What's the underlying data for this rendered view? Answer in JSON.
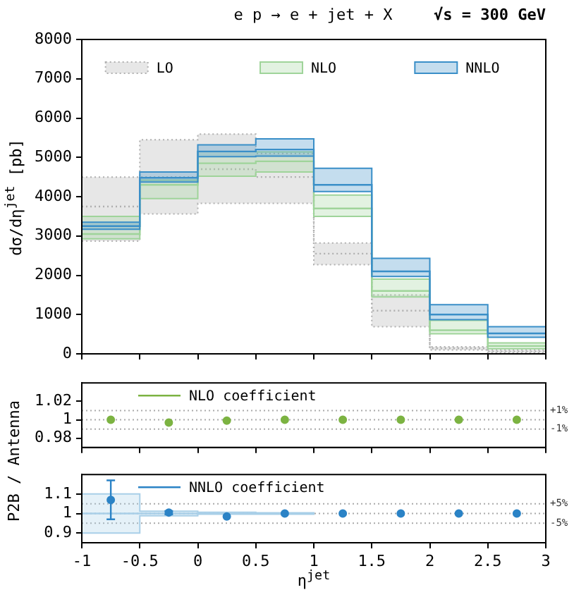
{
  "chart_data": [
    {
      "type": "step",
      "title": "e p → e + jet + X",
      "annotations": [
        "√s = 300 GeV"
      ],
      "ylabel": "dσ/dη$^{jet}$ [pb]",
      "xlim": [
        -1,
        3
      ],
      "xticks": [
        -1,
        -0.5,
        0,
        0.5,
        1,
        1.5,
        2,
        2.5,
        3
      ],
      "ylim": [
        0,
        8000
      ],
      "yticks": [
        0,
        1000,
        2000,
        3000,
        4000,
        5000,
        6000,
        7000,
        8000
      ],
      "tick_labels": "y",
      "legend": "top",
      "grid": false,
      "series": [
        {
          "name": "LO",
          "color": "#b0b0b0",
          "line_style": "dotted",
          "x": [
            -1,
            -0.5,
            0,
            0.5,
            1,
            1.5,
            2,
            2.5,
            3
          ],
          "values": [
            3750,
            4500,
            4700,
            4500,
            2550,
            1100,
            140,
            60,
            60
          ],
          "lower": [
            2870,
            3560,
            3830,
            3830,
            2270,
            690,
            100,
            30,
            30
          ],
          "upper": [
            4500,
            5450,
            5590,
            5100,
            2820,
            1500,
            180,
            100,
            100
          ]
        },
        {
          "name": "NLO",
          "color": "#9fd49a",
          "line_style": "solid",
          "x": [
            -1,
            -0.5,
            0,
            0.5,
            1,
            1.5,
            2,
            2.5,
            3
          ],
          "values": [
            3050,
            4300,
            4850,
            4900,
            3700,
            1600,
            600,
            200,
            200
          ],
          "lower": [
            2930,
            3950,
            4520,
            4630,
            3500,
            1450,
            510,
            130,
            130
          ],
          "upper": [
            3500,
            4420,
            5150,
            5140,
            4040,
            1900,
            850,
            280,
            280
          ]
        },
        {
          "name": "NNLO",
          "color": "#3a8fc8",
          "line_style": "solid",
          "x": [
            -1,
            -0.5,
            0,
            0.5,
            1,
            1.5,
            2,
            2.5,
            3
          ],
          "values": [
            3250,
            4480,
            5150,
            5200,
            4300,
            2100,
            1000,
            520,
            520
          ],
          "lower": [
            3170,
            4370,
            5020,
            5030,
            4130,
            1970,
            870,
            420,
            420
          ],
          "upper": [
            3350,
            4630,
            5320,
            5470,
            4720,
            2430,
            1250,
            690,
            690
          ]
        }
      ]
    },
    {
      "type": "scatter",
      "ylabel": "P2B / Antenna",
      "xlim": [
        -1,
        3
      ],
      "xticks": [
        -1,
        -0.5,
        0,
        0.5,
        1,
        1.5,
        2,
        2.5,
        3
      ],
      "ylim": [
        0.97,
        1.04
      ],
      "yticks": [
        0.98,
        1,
        1.02
      ],
      "tick_labels": "y",
      "legend": "top left",
      "grid": false,
      "ref_lines": [
        {
          "axis": "y",
          "value": 1.01
        },
        {
          "axis": "y",
          "value": 1
        },
        {
          "axis": "y",
          "value": 0.99
        }
      ],
      "annotations": [
        "+1%",
        "-1%"
      ],
      "series": [
        {
          "name": "NLO coefficient",
          "color": "#7cb342",
          "marker": "circle",
          "x": [
            -0.75,
            -0.25,
            0.25,
            0.75,
            1.25,
            1.75,
            2.25,
            2.75
          ],
          "values": [
            1,
            0.997,
            0.999,
            1,
            1,
            1,
            1,
            1
          ]
        }
      ]
    },
    {
      "type": "scatter",
      "xlabel": "η$^{jet}$",
      "xlim": [
        -1,
        3
      ],
      "xticks": [
        -1,
        -0.5,
        0,
        0.5,
        1,
        1.5,
        2,
        2.5,
        3
      ],
      "ylim": [
        0.85,
        1.2
      ],
      "yticks": [
        0.9,
        1,
        1.1
      ],
      "legend": "top left",
      "grid": false,
      "ref_lines": [
        {
          "axis": "y",
          "value": 1.05
        },
        {
          "axis": "y",
          "value": 1
        },
        {
          "axis": "y",
          "value": 0.95
        }
      ],
      "annotations": [
        "+5%",
        "-5%"
      ],
      "series": [
        {
          "type": "step",
          "color": "#a9cfe8",
          "x": [
            -1,
            -0.5,
            0,
            0.5,
            1
          ],
          "values": [
            1,
            1,
            1,
            1,
            1
          ],
          "lower": [
            0.9,
            0.988,
            0.996,
            0.996,
            0.996
          ],
          "upper": [
            1.1,
            1.012,
            1.006,
            1.004,
            1.004
          ]
        },
        {
          "name": "NNLO coefficient",
          "color": "#2b83c6",
          "marker": "circle",
          "x": [
            -0.75,
            -0.25,
            0.25,
            0.75,
            1.25,
            1.75,
            2.25,
            2.75
          ],
          "values": [
            1.07,
            1.005,
            0.985,
            1,
            1,
            1,
            1,
            1
          ],
          "errors": [
            [
              0.97,
              1.17
            ],
            [
              0.995,
              1.013
            ],
            null,
            null,
            null,
            null,
            null,
            null
          ]
        }
      ]
    }
  ]
}
